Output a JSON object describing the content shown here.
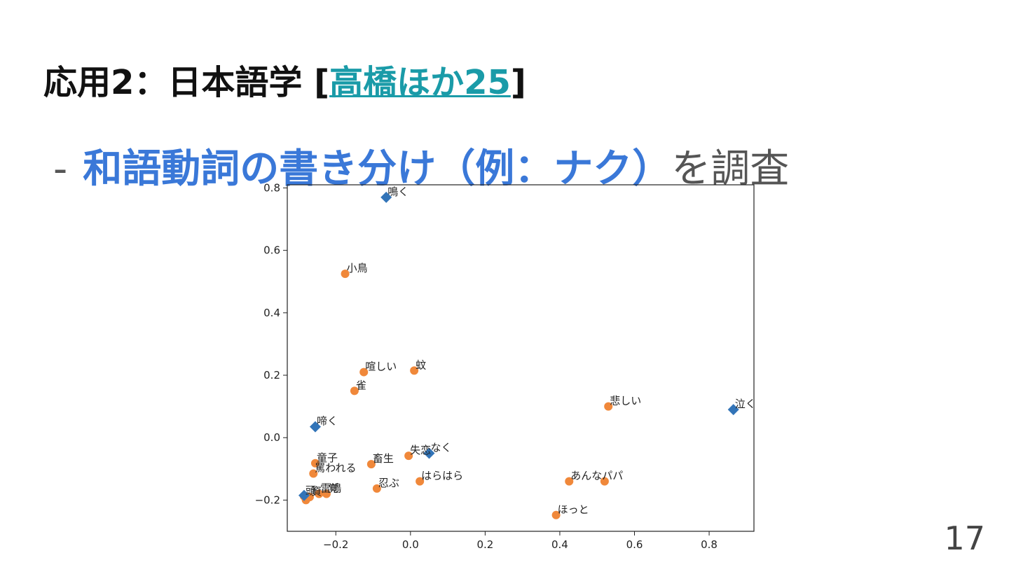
{
  "slide": {
    "title_prefix": "応用2：日本語学 [",
    "title_link": "高橋ほか25",
    "title_suffix": "]",
    "bullet_dash": "-",
    "bullet_highlight": "和語動詞の書き分け（例：ナク）",
    "bullet_rest": "を調査",
    "page_number": "17"
  },
  "colors": {
    "highlight": "#3a78d8",
    "link": "#1a9ba8",
    "verb_marker": "#3274b8",
    "word_marker": "#f0883a"
  },
  "chart_data": {
    "type": "scatter",
    "xlim": [
      -0.33,
      0.92
    ],
    "ylim": [
      -0.3,
      0.81
    ],
    "xticks": [
      -0.2,
      0.0,
      0.2,
      0.4,
      0.6,
      0.8
    ],
    "yticks": [
      -0.2,
      0.0,
      0.2,
      0.4,
      0.6,
      0.8
    ],
    "xtick_labels": [
      "−0.2",
      "0.0",
      "0.2",
      "0.4",
      "0.6",
      "0.8"
    ],
    "ytick_labels": [
      "−0.2",
      "0.0",
      "0.2",
      "0.4",
      "0.6",
      "0.8"
    ],
    "grid": false,
    "series": [
      {
        "marker": "diamond",
        "color": "#3274b8",
        "points": [
          {
            "label": "鳴く",
            "x": -0.065,
            "y": 0.77
          },
          {
            "label": "啼く",
            "x": -0.255,
            "y": 0.035
          },
          {
            "label": "泣く",
            "x": 0.865,
            "y": 0.09
          },
          {
            "label": "なく",
            "x": 0.05,
            "y": -0.05
          },
          {
            "label": "",
            "x": -0.285,
            "y": -0.185
          }
        ]
      },
      {
        "marker": "circle",
        "color": "#f0883a",
        "points": [
          {
            "label": "小鳥",
            "x": -0.175,
            "y": 0.525
          },
          {
            "label": "喧しい",
            "x": -0.125,
            "y": 0.21
          },
          {
            "label": "蚊",
            "x": 0.01,
            "y": 0.215
          },
          {
            "label": "雀",
            "x": -0.15,
            "y": 0.15
          },
          {
            "label": "悲しい",
            "x": 0.53,
            "y": 0.1
          },
          {
            "label": "失恋",
            "x": -0.005,
            "y": -0.058
          },
          {
            "label": "童子",
            "x": -0.255,
            "y": -0.082
          },
          {
            "label": "畜生",
            "x": -0.105,
            "y": -0.085
          },
          {
            "label": "罵われる",
            "x": -0.26,
            "y": -0.115
          },
          {
            "label": "はらはら",
            "x": 0.025,
            "y": -0.14
          },
          {
            "label": "あんなパパ",
            "x": 0.425,
            "y": -0.14
          },
          {
            "label": "",
            "x": 0.52,
            "y": -0.14
          },
          {
            "label": "忍ぶ",
            "x": -0.09,
            "y": -0.163
          },
          {
            "label": "雷鳴",
            "x": -0.245,
            "y": -0.18
          },
          {
            "label": "覚",
            "x": -0.225,
            "y": -0.18
          },
          {
            "label": "頭",
            "x": -0.285,
            "y": -0.188
          },
          {
            "label": "資",
            "x": -0.27,
            "y": -0.19
          },
          {
            "label": "",
            "x": -0.28,
            "y": -0.2
          },
          {
            "label": "ほっと",
            "x": 0.39,
            "y": -0.248
          }
        ]
      }
    ]
  }
}
